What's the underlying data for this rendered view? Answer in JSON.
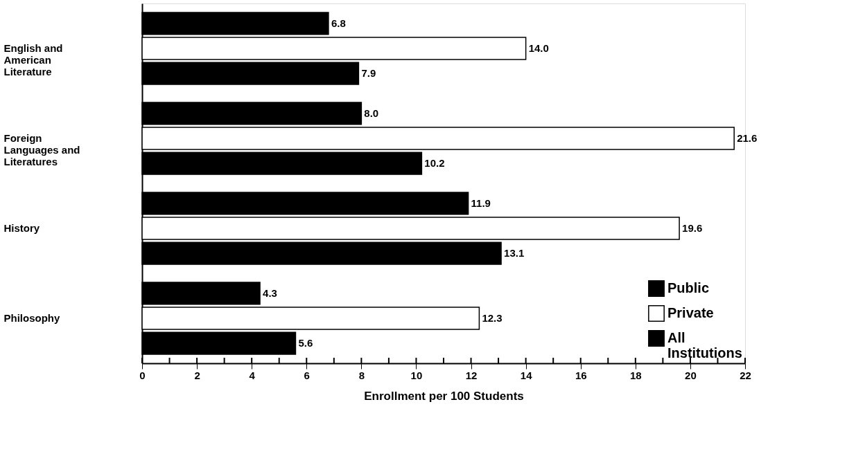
{
  "chart_data": {
    "type": "bar",
    "orientation": "horizontal",
    "xlabel": "Enrollment per 100 Students",
    "categories": [
      "English and American Literature",
      "Foreign Languages and Literatures",
      "History",
      "Philosophy"
    ],
    "series": [
      {
        "name": "Public",
        "color": "#000000",
        "values": [
          6.8,
          8.0,
          11.9,
          4.3
        ],
        "value_labels": [
          "6.8",
          "8.0",
          "11.9",
          "4.3"
        ]
      },
      {
        "name": "Private",
        "color": "#ffffff",
        "values": [
          14.0,
          21.6,
          19.6,
          12.3
        ],
        "value_labels": [
          "14.0",
          "21.6",
          "19.6",
          "12.3"
        ]
      },
      {
        "name": "All Institutions",
        "color": "#000000",
        "values": [
          7.9,
          10.2,
          13.1,
          5.6
        ],
        "value_labels": [
          "7.9",
          "10.2",
          "13.1",
          "5.6"
        ]
      }
    ],
    "xlim": [
      0,
      22
    ],
    "xticks": [
      0,
      {
        "value": 1,
        "label": null
      },
      2,
      {
        "value": 3,
        "label": null
      },
      4,
      {
        "value": 5,
        "label": null
      },
      6,
      {
        "value": 7,
        "label": null
      },
      8,
      {
        "value": 9,
        "label": null
      },
      10,
      {
        "value": 11,
        "label": null
      },
      12,
      {
        "value": 13,
        "label": null
      },
      14,
      {
        "value": 15,
        "label": null
      },
      16,
      {
        "value": 17,
        "label": null
      },
      18,
      {
        "value": 19,
        "label": null
      },
      20,
      {
        "value": 21,
        "label": null
      },
      22
    ],
    "grid": false,
    "legend": "bottom right"
  }
}
